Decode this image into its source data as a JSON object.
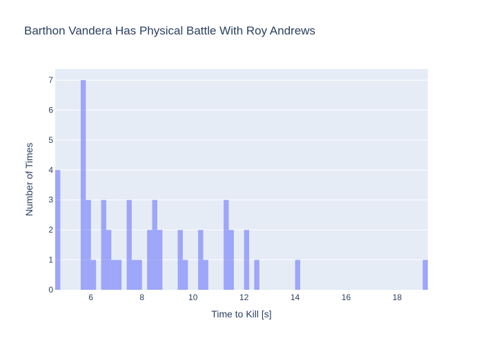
{
  "chart_data": {
    "type": "bar",
    "title": "Barthon Vandera Has Physical Battle With Roy Andrews",
    "xlabel": "Time to Kill [s]",
    "ylabel": "Number of Times",
    "xlim": [
      4.6,
      19.2
    ],
    "ylim": [
      0,
      7.37
    ],
    "xticks": [
      6,
      8,
      10,
      12,
      14,
      16,
      18
    ],
    "yticks": [
      0,
      1,
      2,
      3,
      4,
      5,
      6,
      7
    ],
    "bin_width": 0.2,
    "bar_color": "#636efa",
    "bar_opacity": 0.55,
    "plot_background": "#e5ecf6",
    "grid": true,
    "bins": [
      {
        "x0": 4.6,
        "count": 4
      },
      {
        "x0": 5.6,
        "count": 7
      },
      {
        "x0": 5.8,
        "count": 3
      },
      {
        "x0": 6.0,
        "count": 1
      },
      {
        "x0": 6.4,
        "count": 3
      },
      {
        "x0": 6.6,
        "count": 2
      },
      {
        "x0": 6.8,
        "count": 1
      },
      {
        "x0": 7.0,
        "count": 1
      },
      {
        "x0": 7.4,
        "count": 3
      },
      {
        "x0": 7.6,
        "count": 1
      },
      {
        "x0": 7.8,
        "count": 1
      },
      {
        "x0": 8.2,
        "count": 2
      },
      {
        "x0": 8.4,
        "count": 3
      },
      {
        "x0": 8.6,
        "count": 2
      },
      {
        "x0": 9.4,
        "count": 2
      },
      {
        "x0": 9.6,
        "count": 1
      },
      {
        "x0": 10.2,
        "count": 2
      },
      {
        "x0": 10.4,
        "count": 1
      },
      {
        "x0": 11.2,
        "count": 3
      },
      {
        "x0": 11.4,
        "count": 2
      },
      {
        "x0": 12.0,
        "count": 2
      },
      {
        "x0": 12.4,
        "count": 1
      },
      {
        "x0": 14.0,
        "count": 1
      },
      {
        "x0": 19.0,
        "count": 1
      }
    ]
  }
}
